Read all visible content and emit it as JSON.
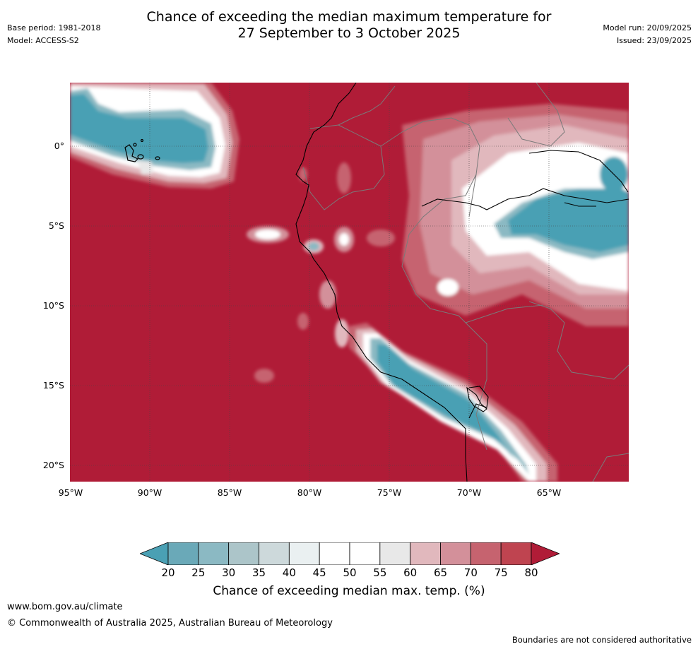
{
  "header": {
    "title_line1": "Chance of exceeding the median maximum temperature for",
    "title_line2": "27 September to 3 October 2025",
    "base_period": "Base period: 1981-2018",
    "model": "Model: ACCESS-S2",
    "model_run": "Model run: 20/09/2025",
    "issued": "Issued: 23/09/2025"
  },
  "map": {
    "latitude_labels": [
      "0°",
      "5°S",
      "10°S",
      "15°S",
      "20°S"
    ],
    "longitude_labels": [
      "95°W",
      "90°W",
      "85°W",
      "80°W",
      "75°W",
      "70°W",
      "65°W"
    ],
    "lon_range": [
      -95,
      -60
    ],
    "lat_range": [
      -21,
      4
    ],
    "background_category": "80+"
  },
  "colorbar": {
    "ticks": [
      "20",
      "25",
      "30",
      "35",
      "40",
      "45",
      "50",
      "55",
      "60",
      "65",
      "70",
      "75",
      "80"
    ],
    "colors": [
      "#4aa0b4",
      "#6aa9b8",
      "#8bb9c3",
      "#acc5c9",
      "#cdd9db",
      "#eaf0f1",
      "#ffffff",
      "#ffffff",
      "#e8e8e8",
      "#e1b8bd",
      "#d3909a",
      "#c6636f",
      "#bf4450",
      "#b01c37"
    ],
    "label": "Chance of exceeding median max. temp. (%)"
  },
  "footer": {
    "url": "www.bom.gov.au/climate",
    "copyright": "© Commonwealth of Australia 2025, Australian Bureau of Meteorology",
    "note": "Boundaries are not considered authoritative"
  }
}
